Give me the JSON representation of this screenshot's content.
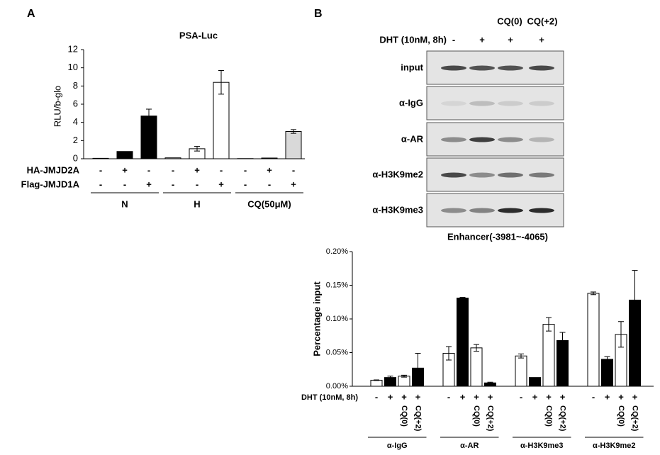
{
  "panel_labels": [
    "A",
    "B"
  ],
  "chart_data": [
    {
      "type": "bar",
      "title": "PSA-Luc",
      "y_label": "RLU/b-glo",
      "ylim": [
        0,
        12
      ],
      "yticks": [
        0,
        2,
        4,
        6,
        8,
        10,
        12
      ],
      "values": [
        0.05,
        0.8,
        4.7,
        0.1,
        1.1,
        8.4,
        0.02,
        0.08,
        3.0
      ],
      "errors": [
        0,
        0,
        0.75,
        0,
        0.25,
        1.3,
        0,
        0,
        0.2
      ],
      "colors": [
        "#000000",
        "#000000",
        "#000000",
        "#ffffff",
        "#ffffff",
        "#ffffff",
        "#d9d9d9",
        "#d9d9d9",
        "#d9d9d9"
      ],
      "rows": [
        {
          "name": "HA-JMJD2A",
          "labels": [
            "-",
            "+",
            "-",
            "-",
            "+",
            "-",
            "-",
            "+",
            "-"
          ]
        },
        {
          "name": "Flag-JMJD1A",
          "labels": [
            "-",
            "-",
            "+",
            "-",
            "-",
            "+",
            "-",
            "-",
            "+"
          ]
        }
      ],
      "groups": [
        "N",
        "H",
        "CQ(50μM)"
      ]
    },
    {
      "type": "grouped-bar",
      "y_label": "Percentage input",
      "ylim": [
        0,
        0.2
      ],
      "yticks": [
        {
          "value": 0,
          "label": "0.00%"
        },
        {
          "value": 0.05,
          "label": "0.05%"
        },
        {
          "value": 0.1,
          "label": "0.10%"
        },
        {
          "value": 0.15,
          "label": "0.15%"
        },
        {
          "value": 0.2,
          "label": "0.20%"
        }
      ],
      "colors": [
        "#ffffff",
        "#000000",
        "#ffffff",
        "#000000"
      ],
      "groups": [
        {
          "name": "α-IgG",
          "values": [
            0.009,
            0.013,
            0.015,
            0.027
          ],
          "errors": [
            0.0005,
            0.002,
            0.0015,
            0.022
          ]
        },
        {
          "name": "α-AR",
          "values": [
            0.049,
            0.131,
            0.057,
            0.005
          ],
          "errors": [
            0.01,
            0.001,
            0.005,
            0.001
          ]
        },
        {
          "name": "α-H3K9me3",
          "values": [
            0.045,
            0.013,
            0.092,
            0.068
          ],
          "errors": [
            0.003,
            0,
            0.01,
            0.012
          ]
        },
        {
          "name": "α-H3K9me2",
          "values": [
            0.138,
            0.04,
            0.077,
            0.128
          ],
          "errors": [
            0.002,
            0.004,
            0.019,
            0.044
          ]
        }
      ],
      "rows": [
        {
          "name": "DHT (10nM, 8h)",
          "labels": [
            "-",
            "+",
            "+",
            "+"
          ]
        },
        {
          "labels": [
            null,
            null,
            "CQ(0)",
            "CQ(+2)"
          ]
        }
      ]
    }
  ],
  "blot": {
    "header": [
      null,
      null,
      "CQ(0)",
      "CQ(+2)"
    ],
    "treatment": {
      "name": "DHT (10nM, 8h)",
      "labels": [
        "-",
        "+",
        "+",
        "+"
      ]
    },
    "rows": [
      "input",
      "α-IgG",
      "α-AR",
      "α-H3K9me2",
      "α-H3K9me3"
    ],
    "caption": "Enhancer(-3981~-4065)"
  }
}
